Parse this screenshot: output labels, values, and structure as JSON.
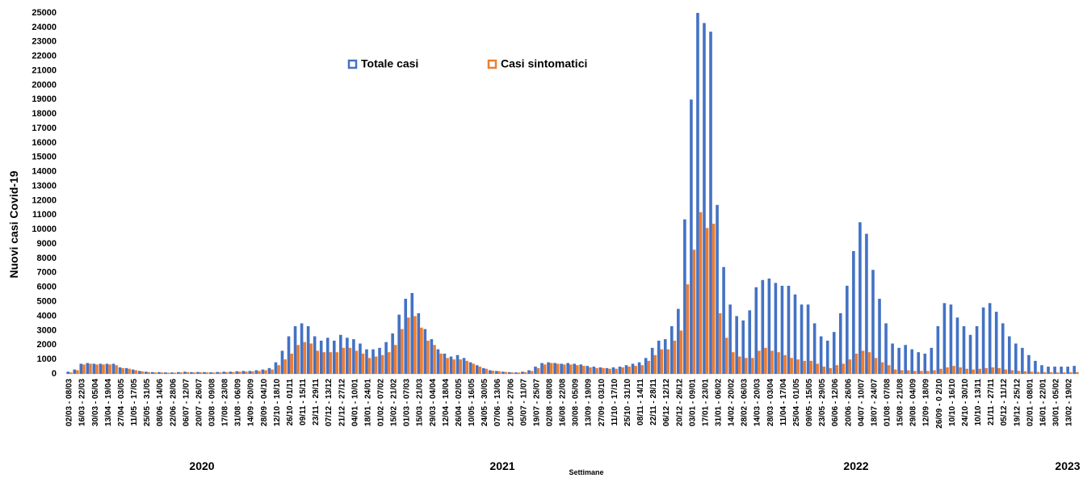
{
  "chart_data": {
    "type": "bar",
    "y_axis_label": "Nuovi casi Covid-19",
    "x_axis_label": "Settimane",
    "year_labels": [
      "2020",
      "2021",
      "2022",
      "2023"
    ],
    "categories": [
      "02/03 - 08/03",
      null,
      "16/03 - 22/03",
      null,
      "30/03 - 05/04",
      null,
      "13/04 - 19/04",
      null,
      "27/04 - 03/05",
      null,
      "11/05 - 17/05",
      null,
      "25/05 - 31/05",
      null,
      "08/06 - 14/06",
      null,
      "22/06 - 28/06",
      null,
      "06/07 - 12/07",
      null,
      "20/07 - 26/07",
      null,
      "03/08 - 09/08",
      null,
      "17/08 - 23/08",
      null,
      "31/08 - 06/09",
      null,
      "14/09 - 20/09",
      null,
      "28/09 - 04/10",
      null,
      "12/10 - 18/10",
      null,
      "26/10 - 01/11",
      null,
      "09/11 - 15/11",
      null,
      "23/11 - 29/11",
      null,
      "07/12 - 13/12",
      null,
      "21/12 - 27/12",
      null,
      "04/01 - 10/01",
      null,
      "18/01 - 24/01",
      null,
      "01/02 - 07/02",
      null,
      "15/02 - 21/02",
      null,
      "01/03 - 07/03",
      null,
      "15/03 - 21/03",
      null,
      "29/03 - 04/04",
      null,
      "12/04 - 18/04",
      null,
      "26/04 - 02/05",
      null,
      "10/05 - 16/05",
      null,
      "24/05 - 30/05",
      null,
      "07/06 - 13/06",
      null,
      "21/06 - 27/06",
      null,
      "05/07 - 11/07",
      null,
      "19/07 - 25/07",
      null,
      "02/08 - 08/08",
      null,
      "16/08 - 22/08",
      null,
      "30/08 - 05/09",
      null,
      "13/09 - 19/09",
      null,
      "27/09 - 03/10",
      null,
      "11/10 - 17/10",
      null,
      "25/10 - 31/10",
      null,
      "08/11 - 14/11",
      null,
      "22/11 - 28/11",
      null,
      "06/12 - 12/12",
      null,
      "20/12 - 26/12",
      null,
      "03/01 - 09/01",
      null,
      "17/01 - 23/01",
      null,
      "31/01 - 06/02",
      null,
      "14/02 - 20/02",
      null,
      "28/02 - 06/03",
      null,
      "14/03 - 20/03",
      null,
      "28/03 - 03/04",
      null,
      "11/04 - 17/04",
      null,
      "25/04 - 01/05",
      null,
      "09/05 - 15/05",
      null,
      "23/05 - 29/05",
      null,
      "06/06 - 12/06",
      null,
      "20/06 - 26/06",
      null,
      "04/07 - 10/07",
      null,
      "18/07 - 24/07",
      null,
      "01/08 - 07/08",
      null,
      "15/08 - 21/08",
      null,
      "29/08 - 04/09",
      null,
      "12/09 - 18/09",
      null,
      "26/09 - 0 2/10",
      null,
      "10/10 - 16/10",
      null,
      "24/10 - 30/10",
      null,
      "10/10 - 13/11",
      null,
      "21/11 - 27/11",
      null,
      "05/12 - 11/12",
      null,
      "19/12 - 25/12",
      null,
      "02/01 - 08/01",
      null,
      "16/01 - 22/01",
      null,
      "30/01 - 05/02",
      null,
      "13/02 - 19/02",
      null
    ],
    "series": [
      {
        "name": "Totale casi",
        "color": "#4472c4",
        "values": [
          150,
          300,
          700,
          750,
          700,
          700,
          700,
          700,
          450,
          400,
          300,
          200,
          150,
          120,
          120,
          100,
          100,
          120,
          150,
          120,
          130,
          120,
          110,
          130,
          150,
          150,
          180,
          200,
          200,
          250,
          300,
          400,
          800,
          1600,
          2600,
          3300,
          3500,
          3300,
          2600,
          2300,
          2500,
          2300,
          2700,
          2500,
          2400,
          2100,
          1700,
          1700,
          1800,
          2200,
          2800,
          4100,
          5200,
          5600,
          4200,
          3100,
          2400,
          1700,
          1400,
          1200,
          1300,
          1100,
          800,
          600,
          400,
          250,
          200,
          150,
          120,
          100,
          150,
          250,
          500,
          750,
          800,
          750,
          700,
          750,
          700,
          650,
          550,
          500,
          450,
          400,
          450,
          500,
          600,
          700,
          800,
          1100,
          1800,
          2300,
          2400,
          3300,
          4500,
          10700,
          19000,
          25000,
          24300,
          23700,
          11700,
          7400,
          4800,
          4000,
          3700,
          4400,
          6000,
          6500,
          6600,
          6300,
          6100,
          6100,
          5500,
          4800,
          4800,
          3500,
          2600,
          2300,
          2900,
          4200,
          6100,
          8500,
          10500,
          9700,
          7200,
          5200,
          3500,
          2100,
          1800,
          2000,
          1700,
          1500,
          1400,
          1800,
          3300,
          4900,
          4800,
          3900,
          3300,
          2700,
          3300,
          4600,
          4900,
          4300,
          3500,
          2600,
          2100,
          1800,
          1300,
          900,
          600,
          500,
          500,
          500,
          500,
          550
        ]
      },
      {
        "name": "Casi sintomatici",
        "color": "#ed7d31",
        "values": [
          100,
          250,
          650,
          700,
          650,
          650,
          650,
          600,
          400,
          350,
          250,
          170,
          120,
          100,
          100,
          80,
          80,
          100,
          120,
          100,
          110,
          100,
          90,
          100,
          120,
          120,
          150,
          160,
          170,
          200,
          250,
          300,
          600,
          1000,
          1400,
          2000,
          2200,
          2100,
          1600,
          1500,
          1500,
          1500,
          1800,
          1800,
          1600,
          1400,
          1100,
          1200,
          1300,
          1500,
          2000,
          3100,
          3900,
          4000,
          3200,
          2300,
          2000,
          1400,
          1100,
          1000,
          1000,
          900,
          700,
          500,
          350,
          220,
          180,
          130,
          100,
          90,
          120,
          200,
          400,
          650,
          750,
          700,
          650,
          650,
          600,
          550,
          450,
          400,
          400,
          350,
          350,
          450,
          500,
          550,
          600,
          900,
          1300,
          1700,
          1700,
          2300,
          3000,
          6200,
          8600,
          11200,
          10100,
          10400,
          4200,
          2500,
          1500,
          1200,
          1100,
          1100,
          1600,
          1800,
          1600,
          1500,
          1300,
          1100,
          1000,
          900,
          900,
          700,
          500,
          400,
          600,
          700,
          1000,
          1400,
          1600,
          1500,
          1100,
          800,
          600,
          300,
          250,
          250,
          200,
          200,
          200,
          250,
          350,
          450,
          550,
          450,
          350,
          300,
          350,
          400,
          450,
          400,
          300,
          250,
          200,
          180,
          150,
          130,
          120,
          110,
          100,
          100,
          110,
          120
        ]
      }
    ],
    "ylim": [
      0,
      25000
    ],
    "yticks": [
      0,
      1000,
      2000,
      3000,
      4000,
      5000,
      6000,
      7000,
      8000,
      9000,
      10000,
      11000,
      12000,
      13000,
      14000,
      15000,
      16000,
      17000,
      18000,
      19000,
      20000,
      21000,
      22000,
      23000,
      24000,
      25000
    ],
    "grid": false,
    "legend": "top"
  }
}
